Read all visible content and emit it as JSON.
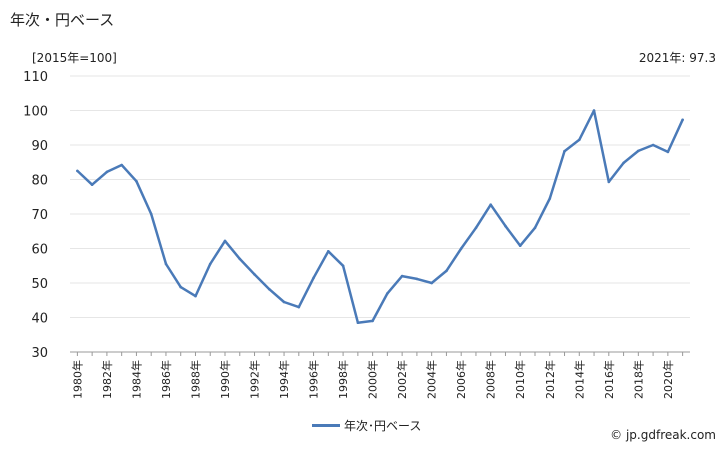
{
  "header": {
    "title": "年次・円ベース",
    "unit": "[2015年=100]",
    "latest": "2021年: 97.3"
  },
  "legend": {
    "label": "年次･円ベース"
  },
  "credit": "© jp.gdfreak.com",
  "chart_data": {
    "type": "line",
    "x": [
      1980,
      1981,
      1982,
      1983,
      1984,
      1985,
      1986,
      1987,
      1988,
      1989,
      1990,
      1991,
      1992,
      1993,
      1994,
      1995,
      1996,
      1997,
      1998,
      1999,
      2000,
      2001,
      2002,
      2003,
      2004,
      2005,
      2006,
      2007,
      2008,
      2009,
      2010,
      2011,
      2012,
      2013,
      2014,
      2015,
      2016,
      2017,
      2018,
      2019,
      2020,
      2021
    ],
    "series": [
      {
        "name": "年次･円ベース",
        "color": "#4a7ab8",
        "values": [
          82.5,
          78.5,
          82.2,
          84.2,
          79.5,
          70.0,
          55.5,
          48.8,
          46.2,
          55.5,
          62.2,
          57.0,
          52.5,
          48.2,
          44.5,
          43.0,
          51.5,
          59.2,
          55.0,
          38.5,
          39.0,
          47.0,
          52.0,
          51.2,
          50.0,
          53.5,
          60.0,
          66.0,
          72.7,
          66.5,
          60.8,
          66.0,
          74.5,
          88.2,
          91.5,
          100.0,
          79.3,
          84.8,
          88.3,
          90.0,
          88.0,
          97.3
        ]
      }
    ],
    "xticks": [
      "1980年",
      "1982年",
      "1984年",
      "1986年",
      "1988年",
      "1990年",
      "1992年",
      "1994年",
      "1996年",
      "1998年",
      "2000年",
      "2002年",
      "2004年",
      "2006年",
      "2008年",
      "2010年",
      "2012年",
      "2014年",
      "2016年",
      "2018年",
      "2020年"
    ],
    "yticks": [
      30,
      40,
      50,
      60,
      70,
      80,
      90,
      100,
      110
    ],
    "ylim": [
      30,
      110
    ],
    "xlim": [
      1980,
      2021
    ],
    "grid": "horizontal",
    "legend_position": "bottom"
  }
}
